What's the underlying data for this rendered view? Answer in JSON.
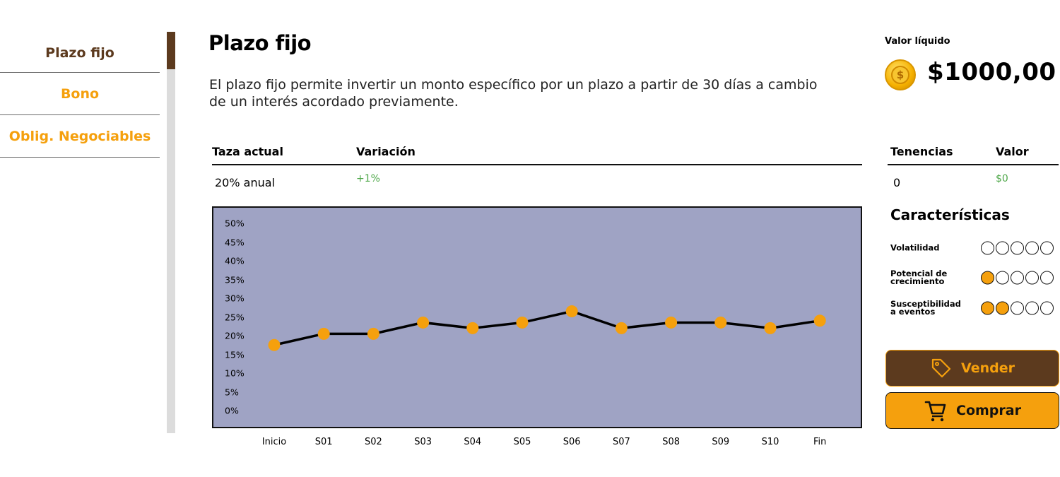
{
  "sidebar": {
    "items": [
      {
        "label": "Plazo fijo",
        "active": true
      },
      {
        "label": "Bono",
        "active": false
      },
      {
        "label": "Oblig. Negociables",
        "active": false
      }
    ]
  },
  "main": {
    "title": "Plazo fijo",
    "description": "El plazo fijo permite invertir un monto específico por un plazo a partir de 30 días a cambio de un interés acordado previamente.",
    "rate_header": {
      "current_rate": "Taza actual",
      "variation": "Variación"
    },
    "rate_values": {
      "current_rate": "20% anual",
      "variation": "+1%"
    }
  },
  "chart_data": {
    "type": "line",
    "categories": [
      "Inicio",
      "S01",
      "S02",
      "S03",
      "S04",
      "S05",
      "S06",
      "S07",
      "S08",
      "S09",
      "S10",
      "Fin"
    ],
    "values": [
      17.5,
      20.5,
      20.5,
      23.5,
      22,
      23.5,
      26.5,
      22,
      23.5,
      23.5,
      22,
      24
    ],
    "yticks": [
      "0%",
      "5%",
      "10%",
      "15%",
      "20%",
      "25%",
      "30%",
      "35%",
      "40%",
      "45%",
      "50%"
    ],
    "ylim": [
      0,
      50
    ],
    "title": "",
    "xlabel": "",
    "ylabel": "",
    "colors": {
      "background": "#9fa3c4",
      "line": "#000000",
      "marker": "#f5a00d"
    }
  },
  "wallet": {
    "label": "Valor líquido",
    "amount": "$1000,00",
    "coin_icon": "coin-icon",
    "coin_symbol": "$"
  },
  "holdings": {
    "header": {
      "holdings": "Tenencias",
      "value": "Valor"
    },
    "values": {
      "holdings": "0",
      "value": "$0"
    }
  },
  "characteristics": {
    "title": "Características",
    "items": [
      {
        "label": "Volatilidad",
        "level": 0,
        "max": 5
      },
      {
        "label": "Potencial de crecimiento",
        "level": 1,
        "max": 5
      },
      {
        "label": "Susceptibilidad a eventos",
        "level": 2,
        "max": 5
      }
    ]
  },
  "actions": {
    "sell_label": "Vender",
    "sell_icon": "tag-icon",
    "buy_label": "Comprar",
    "buy_icon": "cart-icon"
  },
  "colors": {
    "brown": "#5c3a1e",
    "orange": "#f5a00d",
    "green": "#4fa84a"
  }
}
